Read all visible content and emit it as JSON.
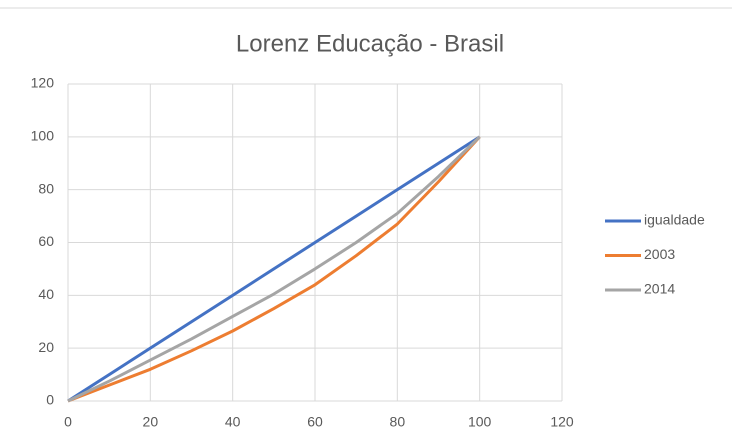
{
  "chart_data": {
    "type": "line",
    "title": "Lorenz Educação - Brasil",
    "x": [
      0,
      10,
      20,
      30,
      40,
      50,
      60,
      70,
      80,
      90,
      100
    ],
    "series": [
      {
        "name": "igualdade",
        "color": "#4472c4",
        "values": [
          0,
          10,
          20,
          30,
          40,
          50,
          60,
          70,
          80,
          90,
          100
        ]
      },
      {
        "name": "2003",
        "color": "#ed7d31",
        "values": [
          0,
          6,
          12,
          19,
          26.5,
          35,
          44,
          55,
          67,
          83,
          100
        ]
      },
      {
        "name": "2014",
        "color": "#a5a5a5",
        "values": [
          0,
          7.5,
          15.5,
          23.5,
          32,
          40.5,
          50,
          60,
          71,
          85,
          100
        ]
      }
    ],
    "xlim": [
      0,
      120
    ],
    "xticks": [
      0,
      20,
      40,
      60,
      80,
      100,
      120
    ],
    "ylim": [
      0,
      120
    ],
    "yticks": [
      0,
      20,
      40,
      60,
      80,
      100,
      120
    ],
    "grid": true,
    "legend": "right"
  }
}
